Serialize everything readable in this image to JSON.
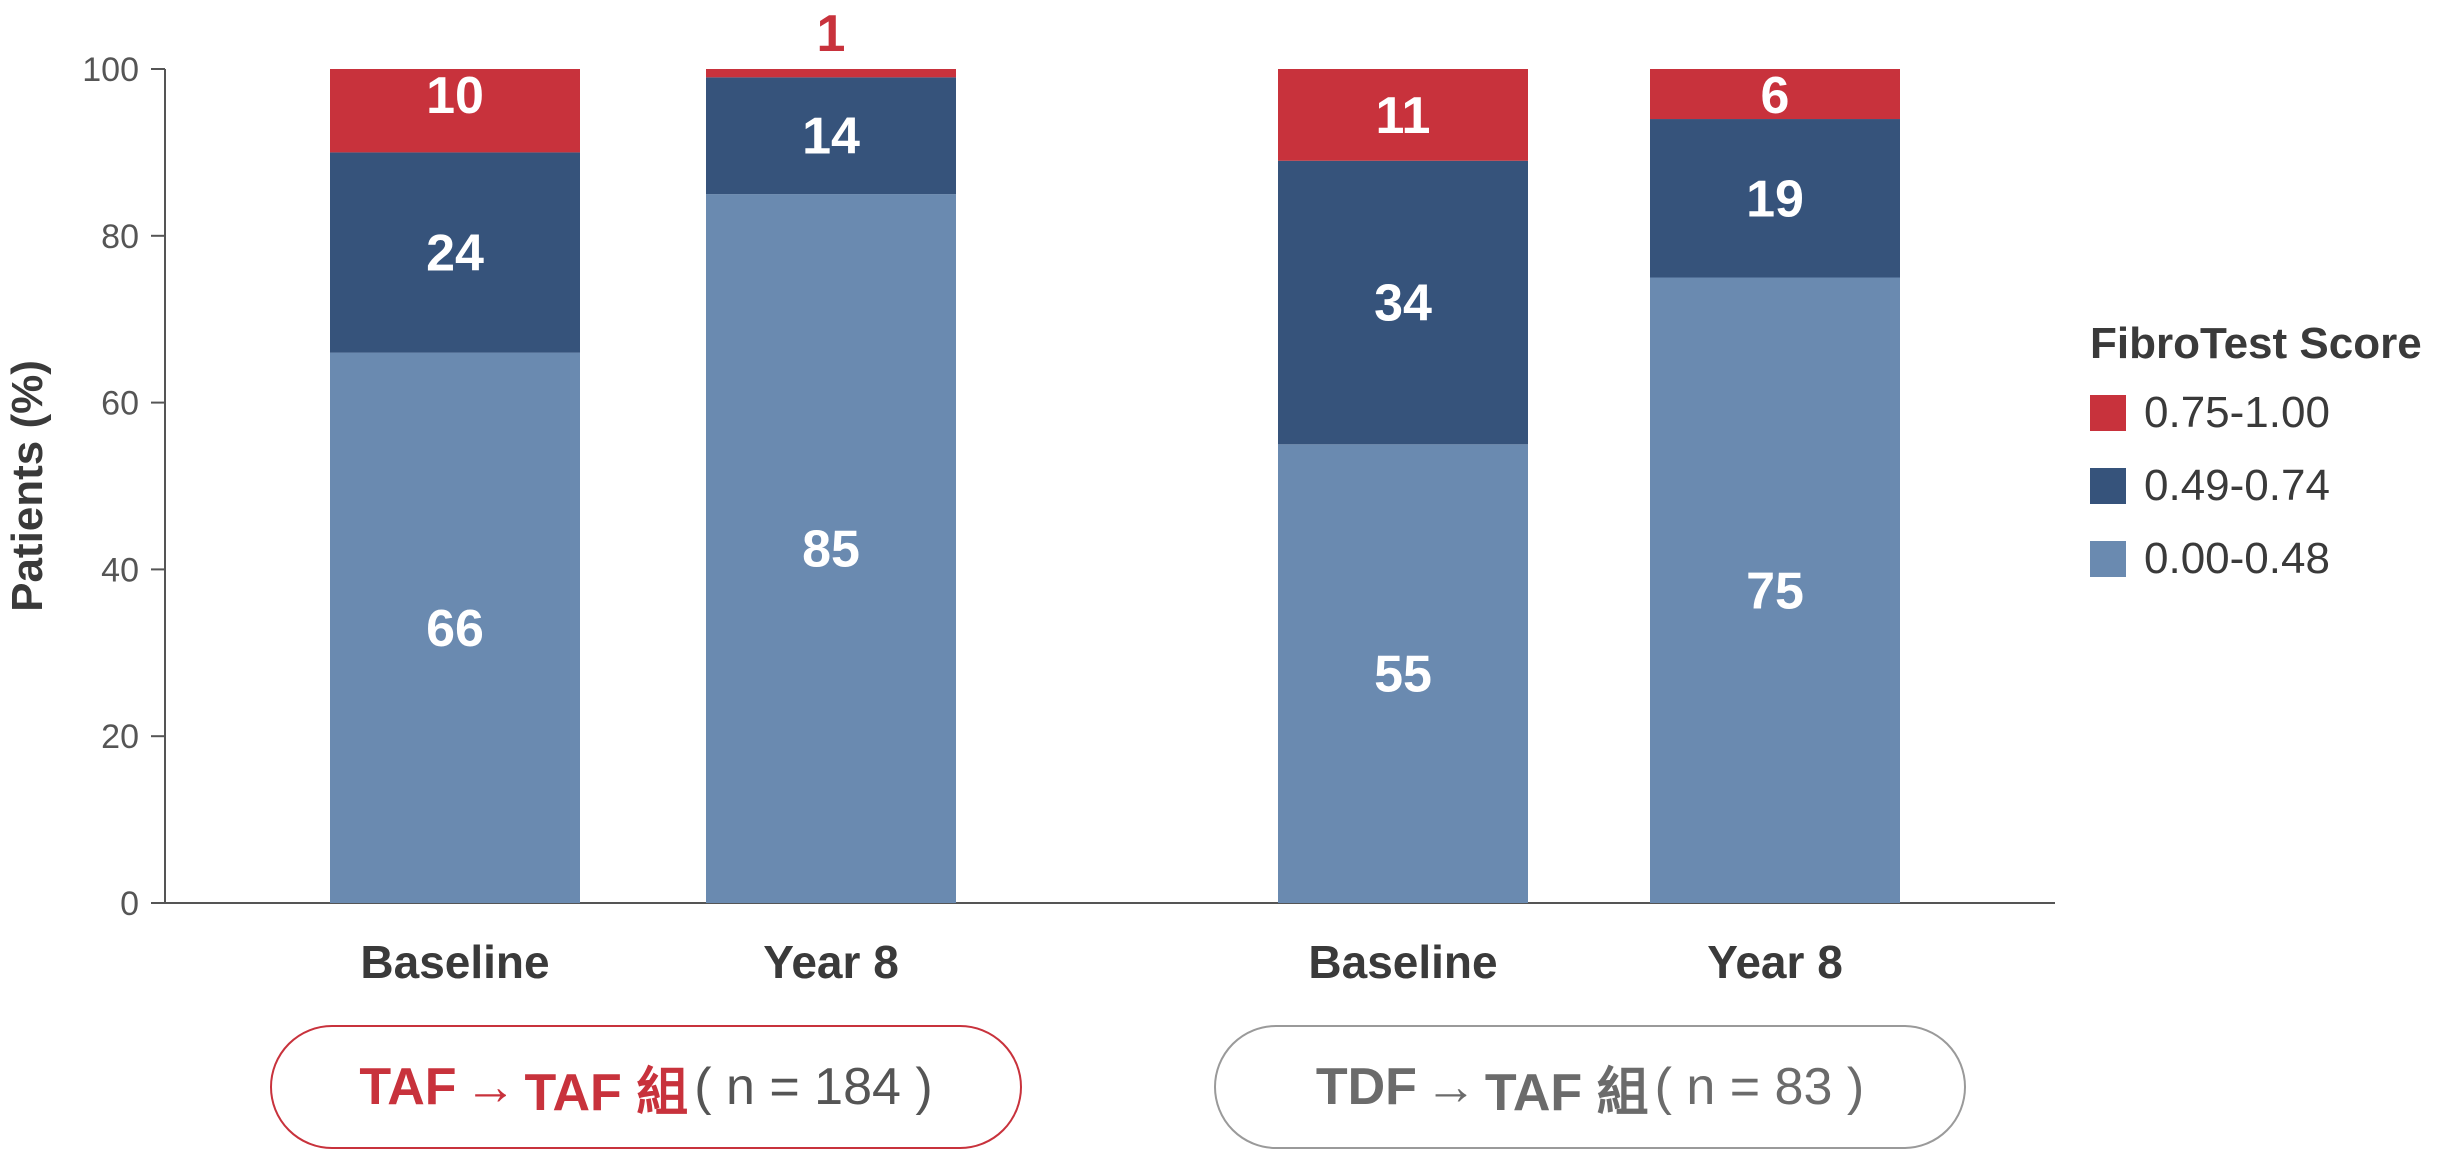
{
  "chart_data": {
    "type": "bar",
    "stacked": true,
    "ylabel": "Patients (%)",
    "ylim": [
      0,
      100
    ],
    "yticks": [
      0,
      20,
      40,
      60,
      80,
      100
    ],
    "categories": [
      "Baseline",
      "Year 8",
      "Baseline",
      "Year 8"
    ],
    "series": [
      {
        "name": "0.00-0.48",
        "color": "#6a8ab0",
        "values": [
          66,
          85,
          55,
          75
        ]
      },
      {
        "name": "0.49-0.74",
        "color": "#36537b",
        "values": [
          24,
          14,
          34,
          19
        ]
      },
      {
        "name": "0.75-1.00",
        "color": "#c8323c",
        "values": [
          10,
          1,
          11,
          6
        ]
      }
    ],
    "legend_title": "FibroTest Score",
    "legend_placement": "right",
    "grid": false,
    "groups": [
      {
        "name": "TAF",
        "arrow": "→",
        "name2": "TAF 組",
        "n": "( n = 184 )",
        "color": "#c8323c"
      },
      {
        "name": "TDF",
        "arrow": "→",
        "name2": "TAF 組",
        "n": "( n = 83 )",
        "color": "#6b6b6b"
      }
    ]
  }
}
